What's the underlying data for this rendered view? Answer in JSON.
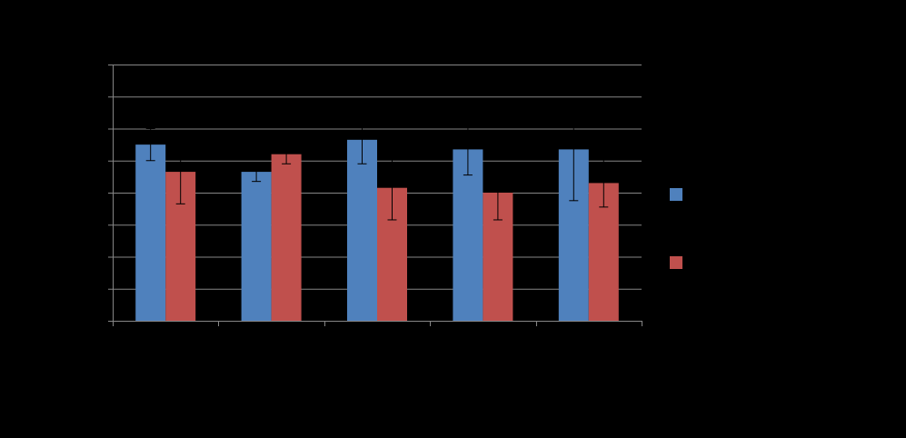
{
  "chart_data": {
    "type": "bar",
    "title": "",
    "xlabel": "",
    "ylabel": "",
    "categories": [
      "",
      "",
      "",
      "",
      ""
    ],
    "ylim": [
      0,
      8
    ],
    "y_ticks": [
      0,
      1,
      2,
      3,
      4,
      5,
      6,
      7,
      8
    ],
    "grid": true,
    "legend_position": "right",
    "series": [
      {
        "color": "#4F81BD",
        "values": [
          5.5,
          4.65,
          5.65,
          5.35,
          5.35
        ],
        "error_low": [
          0.5,
          0.3,
          0.75,
          0.8,
          1.6
        ],
        "error_high": [
          0.5,
          0.3,
          0.75,
          0.8,
          1.6
        ]
      },
      {
        "color": "#C0504D",
        "values": [
          4.65,
          5.2,
          4.15,
          4.0,
          4.3
        ],
        "error_low": [
          1.0,
          0.3,
          1.0,
          0.85,
          0.75
        ],
        "error_high": [
          1.0,
          0.3,
          1.0,
          0.85,
          0.75
        ]
      }
    ]
  }
}
